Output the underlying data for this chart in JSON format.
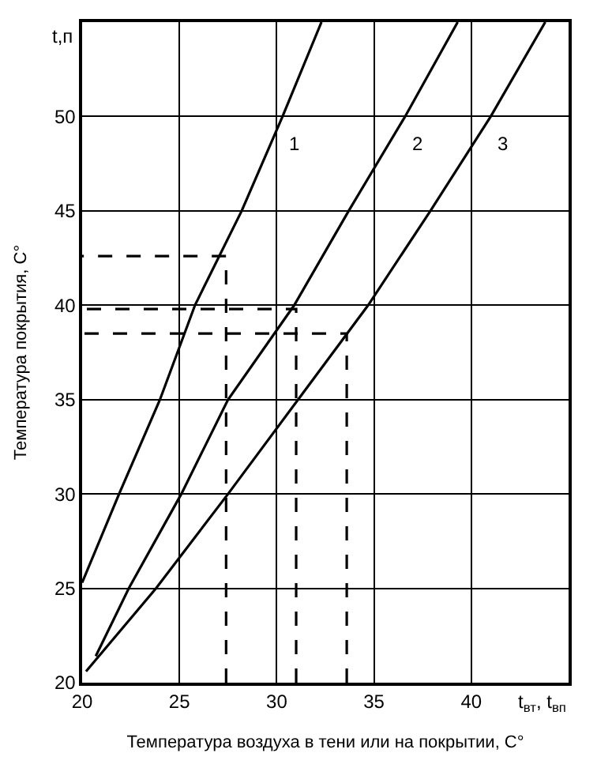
{
  "chart_data": {
    "type": "line",
    "ylabel": "Температура покрытия, С°",
    "xlabel": "Температура воздуха в тени или на покрытии, С°",
    "annotations": [
      "t,п",
      "t$_{вт}$, t$_{вп}$"
    ],
    "series": [
      {
        "name": "1",
        "color": "#000000",
        "x": [
          20,
          21.9,
          24,
          25.8,
          28.2,
          30.3,
          32.3
        ],
        "values": [
          25.3,
          30,
          35,
          40,
          45,
          50,
          55
        ]
      },
      {
        "name": "2",
        "color": "#000000",
        "x": [
          20.7,
          22.4,
          25.1,
          27.5,
          30.9,
          33.7,
          36.6,
          39.3
        ],
        "values": [
          21.4,
          25,
          30,
          35,
          40,
          45,
          50,
          55
        ]
      },
      {
        "name": "3",
        "color": "#000000",
        "x": [
          20.2,
          23.8,
          27.5,
          31.1,
          34.7,
          37.9,
          41.0,
          43.8
        ],
        "values": [
          20.6,
          25,
          30,
          35,
          40,
          45,
          50,
          55
        ]
      },
      {
        "color": "#000000",
        "line_style": "dashed",
        "x": [
          27.4,
          27.4,
          20
        ],
        "values": [
          20,
          42.6,
          42.6
        ]
      },
      {
        "color": "#000000",
        "line_style": "dashed",
        "x": [
          31.0,
          31.0,
          20
        ],
        "values": [
          20,
          39.8,
          39.8
        ]
      },
      {
        "color": "#000000",
        "line_style": "dashed",
        "x": [
          33.6,
          33.6,
          20
        ],
        "values": [
          20,
          38.5,
          38.5
        ]
      }
    ],
    "xlim": [
      20,
      45
    ],
    "ylim": [
      20,
      55
    ],
    "xticks": [
      20,
      25,
      30,
      35,
      40
    ],
    "yticks": [
      20,
      25,
      30,
      35,
      40,
      45,
      50
    ],
    "grid": true,
    "legend": false,
    "marker": "none",
    "line_style": "solid"
  }
}
